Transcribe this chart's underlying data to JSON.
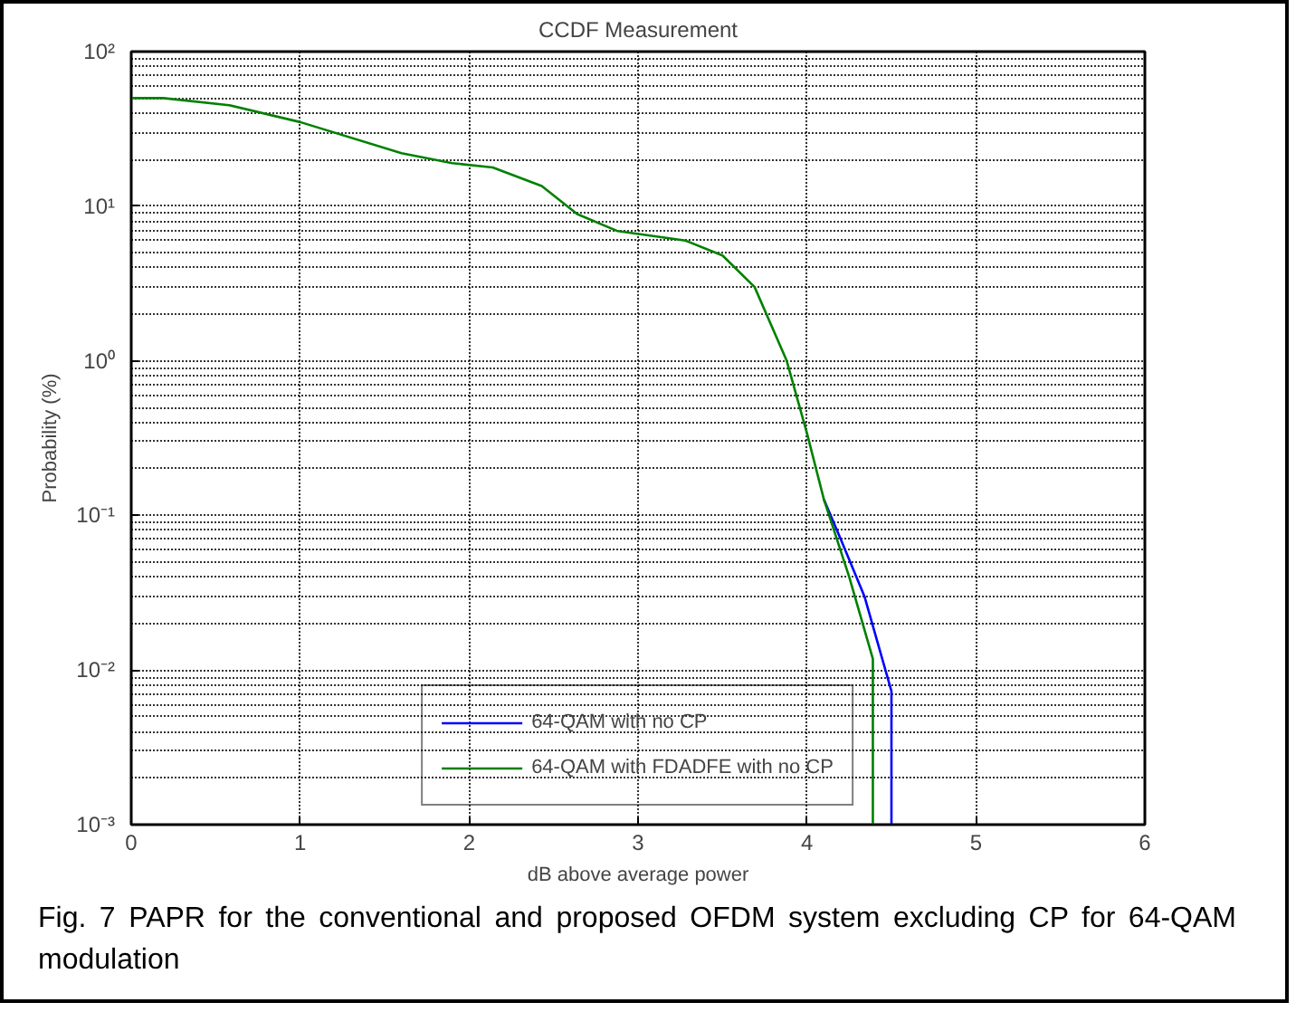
{
  "chart_data": {
    "type": "line",
    "title": "CCDF Measurement",
    "xlabel": "dB above average power",
    "ylabel": "Probability (%)",
    "log": "y",
    "grid": true,
    "legend": "bottom",
    "line_style": "solid",
    "marker": "none",
    "xlim": [
      0,
      6
    ],
    "xticks": [
      0,
      1,
      2,
      3,
      4,
      5,
      6
    ],
    "ylim": [
      0.001,
      100
    ],
    "yticks": [
      {
        "value": 0.001,
        "label": "10⁻³"
      },
      {
        "value": 0.01,
        "label": "10⁻²"
      },
      {
        "value": 0.1,
        "label": "10⁻¹"
      },
      {
        "value": 1,
        "label": "10⁰"
      },
      {
        "value": 10,
        "label": "10¹"
      },
      {
        "value": 100,
        "label": "10²"
      }
    ],
    "series": [
      {
        "name": "64-QAM with no CP",
        "color": "#0000ff",
        "x": [
          4.1,
          4.2,
          4.34,
          4.5,
          4.5
        ],
        "values": [
          0.127,
          0.07,
          0.03,
          0.0073,
          0.001
        ]
      },
      {
        "name": "64-QAM with FDADFE with no CP",
        "color": "#008000",
        "x": [
          0,
          0.19,
          0.58,
          1.0,
          1.6,
          1.9,
          2.14,
          2.43,
          2.64,
          2.88,
          3.28,
          3.5,
          3.69,
          3.88,
          4.0,
          4.1,
          4.25,
          4.39,
          4.39
        ],
        "values": [
          50,
          50,
          45,
          35,
          22,
          19,
          17.8,
          13.5,
          8.9,
          6.9,
          6.0,
          4.8,
          3.0,
          1.0,
          0.34,
          0.127,
          0.04,
          0.0118,
          0.001
        ]
      }
    ],
    "annotations": [
      "Fig. 7 PAPR for the conventional and proposed OFDM system excluding CP for 64-QAM modulation"
    ]
  }
}
